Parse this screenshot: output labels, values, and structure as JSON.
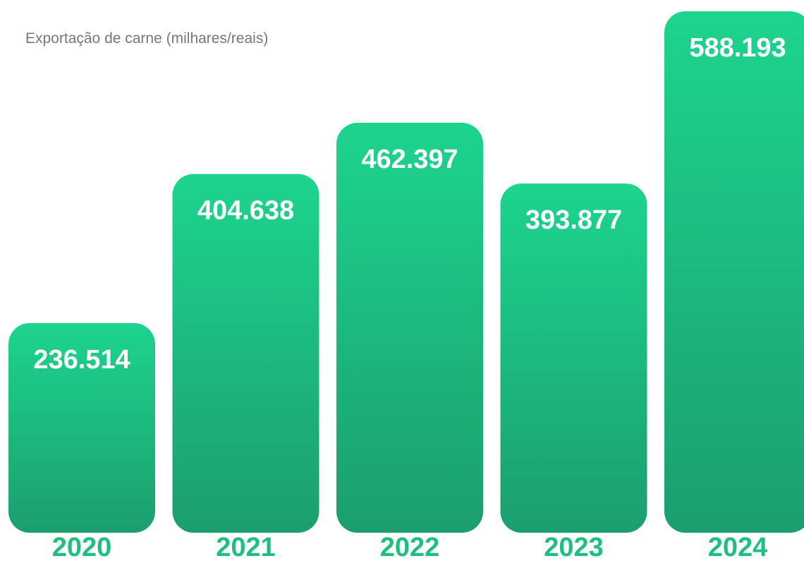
{
  "chart_data": {
    "type": "bar",
    "title": "Exportação de carne (milhares/reais)",
    "categories": [
      "2020",
      "2021",
      "2022",
      "2023",
      "2024"
    ],
    "values": [
      236.514,
      404.638,
      462.397,
      393.877,
      588.193
    ],
    "value_labels": [
      "236.514",
      "404.638",
      "462.397",
      "393.877",
      "588.193"
    ],
    "xlabel": "",
    "ylabel": "",
    "grid": false,
    "colors": {
      "bar_top": "#1dd48e",
      "bar_bottom": "#1c9e6e",
      "label": "#1fbf7f",
      "value_text": "#ffffff",
      "title": "#777777"
    }
  }
}
